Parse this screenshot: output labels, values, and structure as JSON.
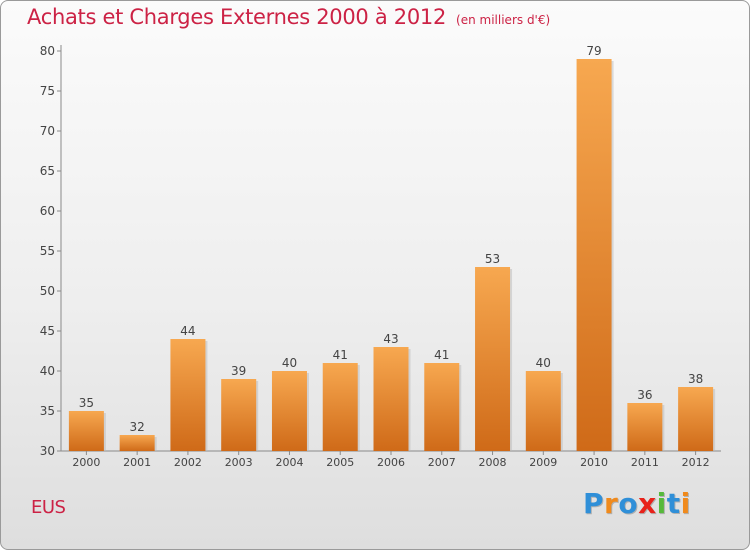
{
  "chart_data": {
    "type": "bar",
    "title": "Achats et Charges Externes 2000 à 2012",
    "subtitle": "(en milliers d'€)",
    "categories": [
      "2000",
      "2001",
      "2002",
      "2003",
      "2004",
      "2005",
      "2006",
      "2007",
      "2008",
      "2009",
      "2010",
      "2011",
      "2012"
    ],
    "values": [
      35,
      32,
      44,
      39,
      40,
      41,
      43,
      41,
      53,
      40,
      79,
      36,
      38
    ],
    "ylim": [
      30,
      80
    ],
    "yticks": [
      30,
      35,
      40,
      45,
      50,
      55,
      60,
      65,
      70,
      75,
      80
    ],
    "xlabel": "",
    "ylabel": "",
    "grid": false,
    "bar_color": "#f39c40"
  },
  "footer": {
    "place": "EUS",
    "logo": {
      "text": "Proxiti",
      "letter_colors": [
        "#2f8fd8",
        "#f08a1c",
        "#2f8fd8",
        "#e8221a",
        "#56b93b",
        "#2f8fd8",
        "#f08a1c"
      ]
    }
  }
}
